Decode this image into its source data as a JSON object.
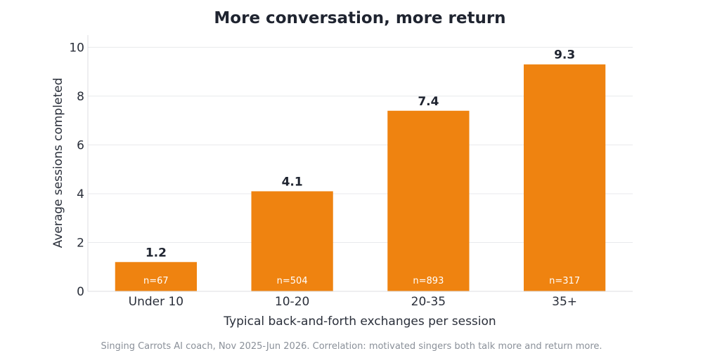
{
  "chart_data": {
    "type": "bar",
    "title": "More conversation, more return",
    "xlabel": "Typical back-and-forth exchanges per session",
    "ylabel": "Average sessions completed",
    "categories": [
      "Under 10",
      "10-20",
      "20-35",
      "35+"
    ],
    "values": [
      1.2,
      4.1,
      7.4,
      9.3
    ],
    "value_labels": [
      "1.2",
      "4.1",
      "7.4",
      "9.3"
    ],
    "sample_sizes": [
      "n=67",
      "n=504",
      "n=893",
      "n=317"
    ],
    "ylim": [
      0,
      10.5
    ],
    "yticks": [
      0,
      2,
      4,
      6,
      8,
      10
    ],
    "grid": true,
    "bar_color": "#ef8310",
    "footnote": "Singing Carrots AI coach, Nov 2025-Jun 2026. Correlation: motivated singers both talk more and return more."
  }
}
